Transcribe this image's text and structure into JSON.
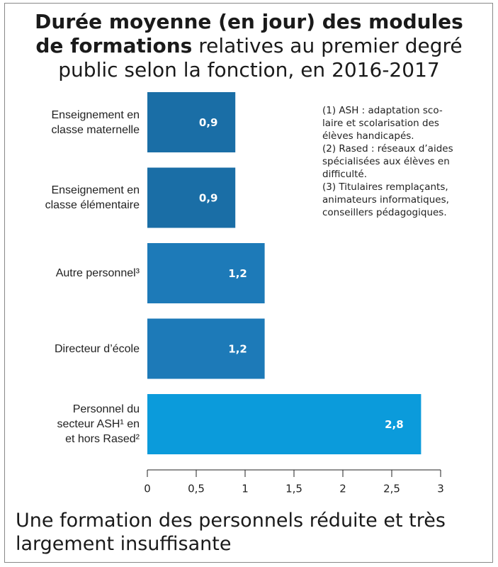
{
  "chart_data": {
    "type": "barh",
    "title": [
      "Durée moyenne (en jour) des modules de formations",
      "relatives au premier degré public selon la fonction, en 2016-2017"
    ],
    "categories": [
      "Enseignement en\nclasse maternelle",
      "Enseignement en\nclasse élémentaire",
      "Autre personnel³",
      "Directeur d’école",
      "Personnel du\nsecteur ASH¹ en\net hors Rased²"
    ],
    "values": [
      0.9,
      0.9,
      1.2,
      1.2,
      2.8
    ],
    "value_labels": [
      "0,9",
      "0,9",
      "1,2",
      "1,2",
      "2,8"
    ],
    "colors": [
      "#1a6ea6",
      "#1a6ea6",
      "#1d7ab8",
      "#1d7ab8",
      "#0b9bdb"
    ],
    "xlim": [
      0,
      3
    ],
    "xticks": [
      0,
      {
        "value": 0.5,
        "label": "0,5"
      },
      1,
      {
        "value": 1.5,
        "label": "1,5"
      },
      2,
      {
        "value": 2.5,
        "label": "2,5"
      },
      3
    ],
    "notes": [
      "(1) ASH : adaptation sco-\nlaire et scolarisation des\nélèves handicapés.",
      "(2) Rased : réseaux d’aides\nspécialisées aux élèves en\ndifficulté.",
      "(3) Titulaires remplaçants,\nanimateurs informatiques,\nconseillers pédagogiques."
    ],
    "caption": "Une formation des personnels réduite et très largement insuffisante"
  }
}
